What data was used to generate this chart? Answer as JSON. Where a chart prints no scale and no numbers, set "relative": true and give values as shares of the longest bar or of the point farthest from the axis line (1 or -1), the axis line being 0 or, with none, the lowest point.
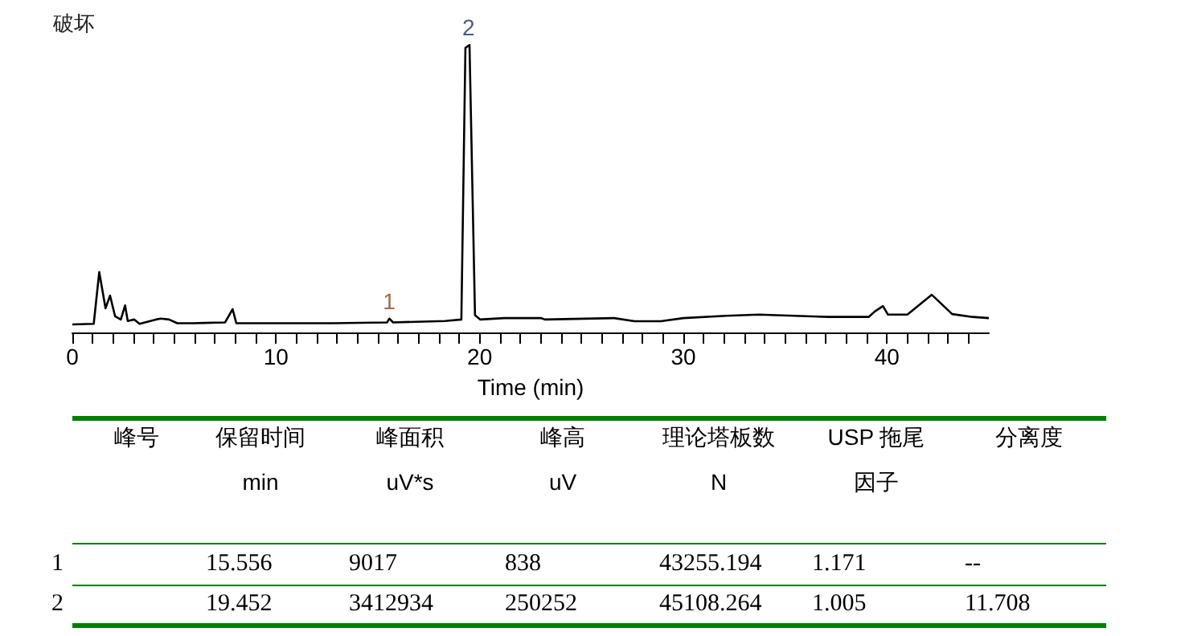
{
  "chart_data": {
    "type": "line",
    "title": "破坏",
    "xlabel": "Time (min)",
    "relative": true,
    "color": "#000000",
    "xlim": [
      0,
      45
    ],
    "xticks": [
      0,
      10,
      20,
      30,
      40
    ],
    "marker": "none",
    "line_style": "solid",
    "x": [
      0,
      1.05,
      1.32,
      1.63,
      1.85,
      2.1,
      2.38,
      2.59,
      2.72,
      3.04,
      3.3,
      4.1,
      4.35,
      4.75,
      5.15,
      5.9,
      7.5,
      7.87,
      8.05,
      12.8,
      15.45,
      15.57,
      15.75,
      18.3,
      19.1,
      19.3,
      19.5,
      19.77,
      20.03,
      21.2,
      23.0,
      23.2,
      26.6,
      27.6,
      28.9,
      30,
      32.1,
      33.7,
      37.1,
      39.1,
      39.4,
      39.8,
      40.05,
      41,
      42.2,
      43.2,
      44.2,
      45
    ],
    "values": [
      0.028,
      0.03,
      0.21,
      0.084,
      0.128,
      0.056,
      0.045,
      0.094,
      0.04,
      0.045,
      0.03,
      0.045,
      0.048,
      0.045,
      0.032,
      0.032,
      0.035,
      0.081,
      0.032,
      0.032,
      0.035,
      0.048,
      0.035,
      0.04,
      0.045,
      0.99,
      1,
      0.06,
      0.045,
      0.05,
      0.05,
      0.045,
      0.05,
      0.039,
      0.039,
      0.05,
      0.058,
      0.062,
      0.054,
      0.054,
      0.073,
      0.092,
      0.062,
      0.062,
      0.131,
      0.064,
      0.054,
      0.05
    ],
    "annotations": [
      {
        "text": "1",
        "x": 15.556,
        "y": 0.048
      },
      {
        "text": "2",
        "x": 19.452,
        "y": 1
      },
      "峰号",
      "保留时间",
      "峰面积",
      "峰高",
      "理论塔板数",
      "USP 拖尾",
      "分离度",
      "min",
      "uV*s",
      "uV",
      "N",
      "因子",
      "1",
      "15.556",
      "9017",
      "838",
      "43255.194",
      "1.171",
      "--",
      "2",
      "19.452",
      "3412934",
      "250252",
      "45108.264",
      "1.005",
      "11.708"
    ]
  }
}
